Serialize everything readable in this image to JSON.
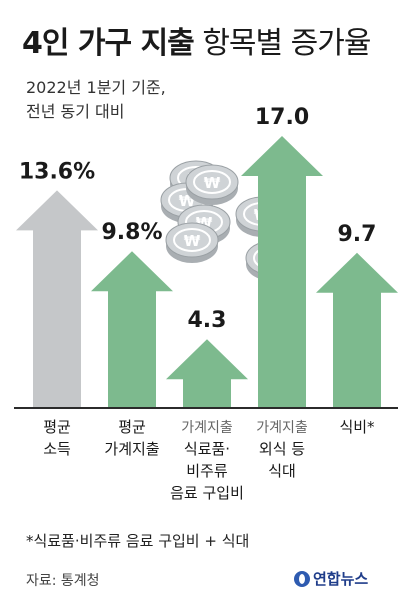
{
  "header": {
    "title_bold": "4인 가구 지출",
    "title_light": "항목별 증가율",
    "subtitle_lines": [
      "2022년 1분기 기준,",
      "전년 동기 대비"
    ]
  },
  "chart_data": {
    "type": "bar",
    "title": "4인 가구 지출 항목별 증가율",
    "categories": [
      "평균 소득",
      "평균 가계지출",
      "가계지출 식료품·비주류 음료 구입비",
      "가계지출 외식 등 식대",
      "식비*"
    ],
    "series": [
      {
        "values": [
          13.6,
          9.8,
          4.3,
          17.0,
          9.7
        ]
      }
    ],
    "value_labels": [
      "13.6%",
      "9.8%",
      "4.3",
      "17.0",
      "9.7"
    ],
    "ylim": [
      0,
      18
    ],
    "grid": false,
    "bars": [
      {
        "value": 13.6,
        "label": "13.6%",
        "color": "#c5c7c9",
        "name_lines": [
          "평균",
          "소득"
        ],
        "prefix": ""
      },
      {
        "value": 9.8,
        "label": "9.8%",
        "color": "#7dba8e",
        "name_lines": [
          "평균",
          "가계지출"
        ],
        "prefix": ""
      },
      {
        "value": 4.3,
        "label": "4.3",
        "color": "#7dba8e",
        "name_lines": [
          "식료품·",
          "비주류",
          "음료 구입비"
        ],
        "prefix": "가계지출"
      },
      {
        "value": 17.0,
        "label": "17.0",
        "color": "#7dba8e",
        "name_lines": [
          "외식 등",
          "식대"
        ],
        "prefix": "가계지출"
      },
      {
        "value": 9.7,
        "label": "9.7",
        "color": "#7dba8e",
        "name_lines": [
          "식비*"
        ],
        "prefix": ""
      }
    ],
    "baseline_color": "#2b2b2b",
    "prefix_color": "#666666",
    "coin_color": "#cfd3d6"
  },
  "footer": {
    "note": "*식료품·비주류 음료 구입비 + 식대",
    "source": "자료: 통계청",
    "logo_text": "연합뉴스"
  }
}
